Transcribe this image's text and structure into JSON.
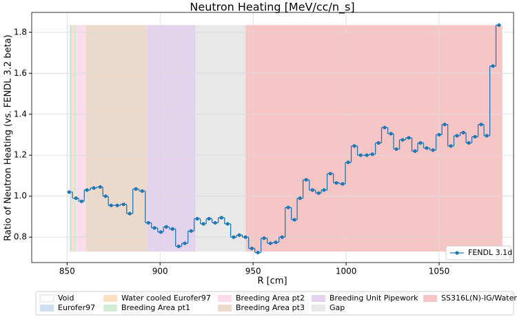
{
  "chart_data": {
    "type": "step",
    "title": "Neutron Heating [MeV/cc/n_s]",
    "xlabel": "R [cm]",
    "ylabel": "Ratio of Neutron Heating (vs. FENDL 3.2 beta)",
    "xlim": [
      831,
      1090
    ],
    "ylim": [
      0.676,
      1.897
    ],
    "xticks": [
      850,
      900,
      950,
      1000,
      1050
    ],
    "yticks": [
      0.8,
      {
        "value": 1,
        "label": "1.0"
      },
      1.2,
      1.4,
      1.6,
      1.8
    ],
    "grid": true,
    "legend_loc": "lower right",
    "series": [
      {
        "name": "FENDL 3.1d",
        "color": "#1f77b4",
        "x": [
          851.1,
          854.8,
          857.8,
          860.7,
          864.4,
          867.8,
          870.7,
          873.7,
          877.0,
          880.4,
          883.7,
          887.0,
          890.4,
          893.7,
          897.0,
          900.4,
          903.3,
          906.7,
          910.0,
          913.3,
          916.7,
          920.0,
          923.3,
          926.3,
          929.6,
          933.0,
          936.3,
          939.6,
          942.6,
          945.9,
          949.3,
          952.6,
          955.9,
          959.3,
          962.2,
          965.6,
          968.9,
          972.2,
          975.2,
          978.5,
          981.9,
          985.2,
          988.1,
          991.5,
          994.8,
          998.1,
          1001.1,
          1004.4,
          1007.8,
          1011.1,
          1014.1,
          1017.4,
          1020.7,
          1024.1,
          1027.0,
          1030.4,
          1033.7,
          1037.0,
          1040.0,
          1043.3,
          1046.7,
          1050.0,
          1053.0,
          1056.3,
          1059.6,
          1063.0,
          1065.9,
          1069.3,
          1072.6,
          1075.6,
          1078.9,
          1082.2
        ],
        "values": [
          1.02,
          0.99,
          0.975,
          1.03,
          1.04,
          1.045,
          1.0,
          0.955,
          0.955,
          0.96,
          0.915,
          1.035,
          1.025,
          0.87,
          0.845,
          0.825,
          0.85,
          0.84,
          0.755,
          0.77,
          0.83,
          0.89,
          0.865,
          0.89,
          0.87,
          0.895,
          0.865,
          0.8,
          0.81,
          0.8,
          0.745,
          0.725,
          0.795,
          0.77,
          0.775,
          0.8,
          0.945,
          0.885,
          0.99,
          1.08,
          1.03,
          1.015,
          1.03,
          1.11,
          1.065,
          1.06,
          1.165,
          1.245,
          1.2,
          1.2,
          1.205,
          1.26,
          1.335,
          1.305,
          1.23,
          1.275,
          1.285,
          1.22,
          1.26,
          1.235,
          1.225,
          1.3,
          1.35,
          1.245,
          1.295,
          1.31,
          1.26,
          1.29,
          1.35,
          1.295,
          1.635,
          1.835
        ]
      }
    ],
    "regions": {
      "ylim": [
        0.73,
        1.835
      ],
      "items": [
        {
          "name": "Void",
          "color": "#ffffff",
          "x": [
            850,
            851.5
          ]
        },
        {
          "name": "Eurofer97",
          "color": "#cfdff0",
          "x": [
            851.5,
            852.5
          ]
        },
        {
          "name": "Water cooled Eurofer97",
          "color": "#fde1c5",
          "x": [
            852.5,
            853.5
          ]
        },
        {
          "name": "Breeding Area pt1",
          "color": "#d3ecd3",
          "x": [
            853.5,
            855
          ]
        },
        {
          "name": "Breeding Area pt2",
          "color": "#fbdceb",
          "x": [
            855,
            860
          ]
        },
        {
          "name": "Breeding Area pt3",
          "color": "#ebdacb",
          "x": [
            860,
            893
          ]
        },
        {
          "name": "Breeding Unit Pipework",
          "color": "#e3d3ec",
          "x": [
            893,
            919
          ]
        },
        {
          "name": "Gap",
          "color": "#e8e8e8",
          "x": [
            919,
            946
          ]
        },
        {
          "name": "SS316L(N)-IG/Water",
          "color": "#f6c5c5",
          "x": [
            946,
            1084
          ]
        }
      ]
    }
  }
}
